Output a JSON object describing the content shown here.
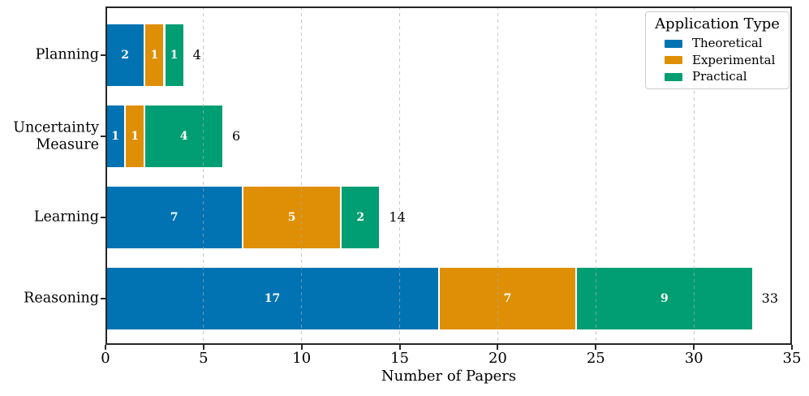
{
  "chart_data": {
    "type": "bar",
    "orientation": "horizontal",
    "stacked": true,
    "title": "",
    "xlabel": "Number of Papers",
    "ylabel": "",
    "categories": [
      "Planning",
      "Uncertainty\nMeasure",
      "Learning",
      "Reasoning"
    ],
    "series": [
      {
        "name": "Theoretical",
        "color": "#0173B2",
        "values": [
          2,
          1,
          7,
          17
        ]
      },
      {
        "name": "Experimental",
        "color": "#DE8F05",
        "values": [
          1,
          1,
          5,
          7
        ]
      },
      {
        "name": "Practical",
        "color": "#029E73",
        "values": [
          1,
          4,
          2,
          9
        ]
      }
    ],
    "totals": [
      4,
      6,
      14,
      33
    ],
    "xlim": [
      0,
      35
    ],
    "xticks": [
      0,
      5,
      10,
      15,
      20,
      25,
      30,
      35
    ],
    "grid": "vertical-dashed",
    "bar_value_label_color": "#ffffff",
    "legend": {
      "title": "Application Type",
      "position": "upper-right"
    }
  },
  "style_colors": {
    "spine": "#262626",
    "grid": "#aaaaaa",
    "background": "#ffffff"
  }
}
